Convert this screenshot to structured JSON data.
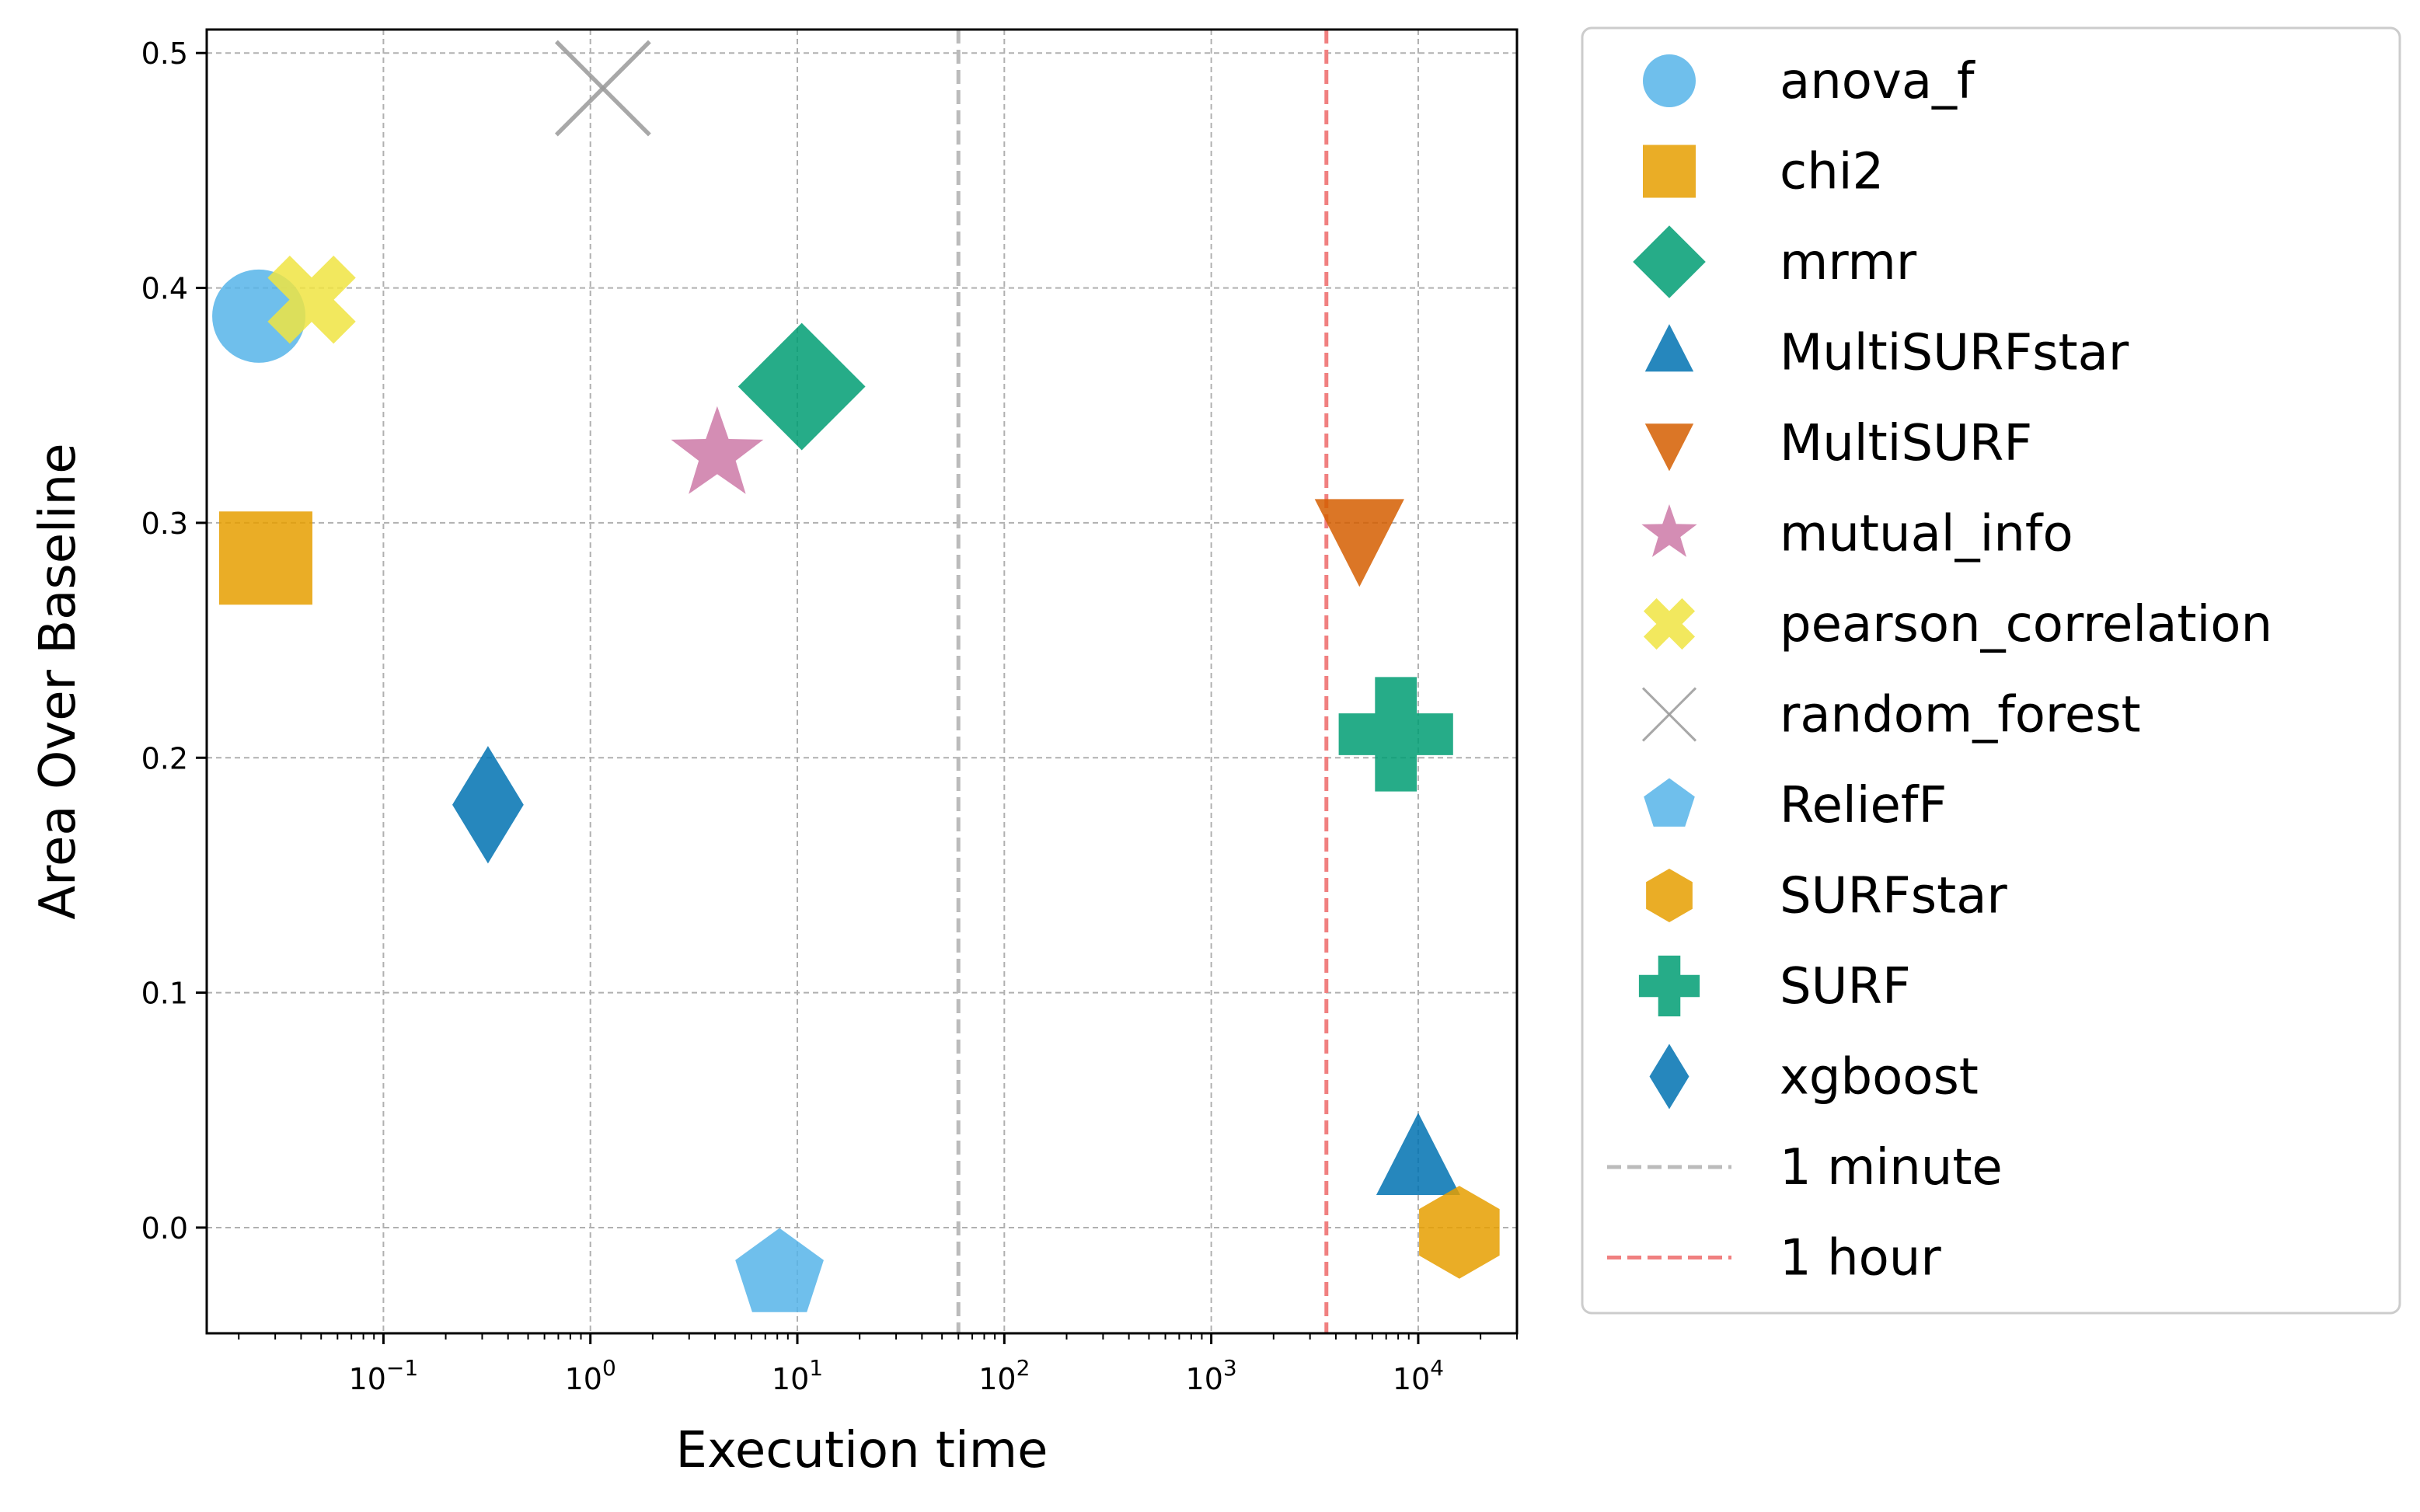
{
  "chart_data": {
    "type": "scatter",
    "xlabel": "Execution time",
    "ylabel": "Area Over Baseline",
    "xscale": "log",
    "xlim": [
      0.014,
      30000
    ],
    "ylim": [
      -0.045,
      0.51
    ],
    "x_ticks": [
      {
        "value": 0.1,
        "base": "10",
        "exp": "−1"
      },
      {
        "value": 1,
        "base": "10",
        "exp": "0"
      },
      {
        "value": 10,
        "base": "10",
        "exp": "1"
      },
      {
        "value": 100,
        "base": "10",
        "exp": "2"
      },
      {
        "value": 1000,
        "base": "10",
        "exp": "3"
      },
      {
        "value": 10000,
        "base": "10",
        "exp": "4"
      }
    ],
    "y_ticks": [
      {
        "value": 0.0,
        "label": "0.0"
      },
      {
        "value": 0.1,
        "label": "0.1"
      },
      {
        "value": 0.2,
        "label": "0.2"
      },
      {
        "value": 0.3,
        "label": "0.3"
      },
      {
        "value": 0.4,
        "label": "0.4"
      },
      {
        "value": 0.5,
        "label": "0.5"
      }
    ],
    "grid": true,
    "legend_position": "outside-right",
    "series": [
      {
        "name": "anova_f",
        "marker": "circle",
        "color": "#56B4E9",
        "x": 0.025,
        "y": 0.388
      },
      {
        "name": "chi2",
        "marker": "square",
        "color": "#E69F00",
        "x": 0.027,
        "y": 0.285
      },
      {
        "name": "mrmr",
        "marker": "diamond",
        "color": "#009E73",
        "x": 10.5,
        "y": 0.358
      },
      {
        "name": "MultiSURFstar",
        "marker": "triangle-up",
        "color": "#0072B2",
        "x": 10000,
        "y": 0.028
      },
      {
        "name": "MultiSURF",
        "marker": "triangle-down",
        "color": "#D55E00",
        "x": 5200,
        "y": 0.295
      },
      {
        "name": "mutual_info",
        "marker": "star",
        "color": "#CC79A7",
        "x": 4.1,
        "y": 0.329
      },
      {
        "name": "pearson_correlation",
        "marker": "x-filled",
        "color": "#F0E442",
        "x": 0.045,
        "y": 0.395
      },
      {
        "name": "random_forest",
        "marker": "x-thin",
        "color": "#999999",
        "x": 1.15,
        "y": 0.485
      },
      {
        "name": "ReliefF",
        "marker": "pentagon",
        "color": "#56B4E9",
        "x": 8.2,
        "y": -0.02
      },
      {
        "name": "SURFstar",
        "marker": "hexagon",
        "color": "#E69F00",
        "x": 15800,
        "y": -0.002
      },
      {
        "name": "SURF",
        "marker": "plus-filled",
        "color": "#009E73",
        "x": 7800,
        "y": 0.21
      },
      {
        "name": "xgboost",
        "marker": "thin-diamond",
        "color": "#0072B2",
        "x": 0.32,
        "y": 0.18
      }
    ],
    "reference_lines": [
      {
        "name": "1 minute",
        "x": 60,
        "color": "#BBBBBB",
        "style": "dashed"
      },
      {
        "name": "1 hour",
        "x": 3600,
        "color": "#F08080",
        "style": "dashed"
      }
    ]
  }
}
